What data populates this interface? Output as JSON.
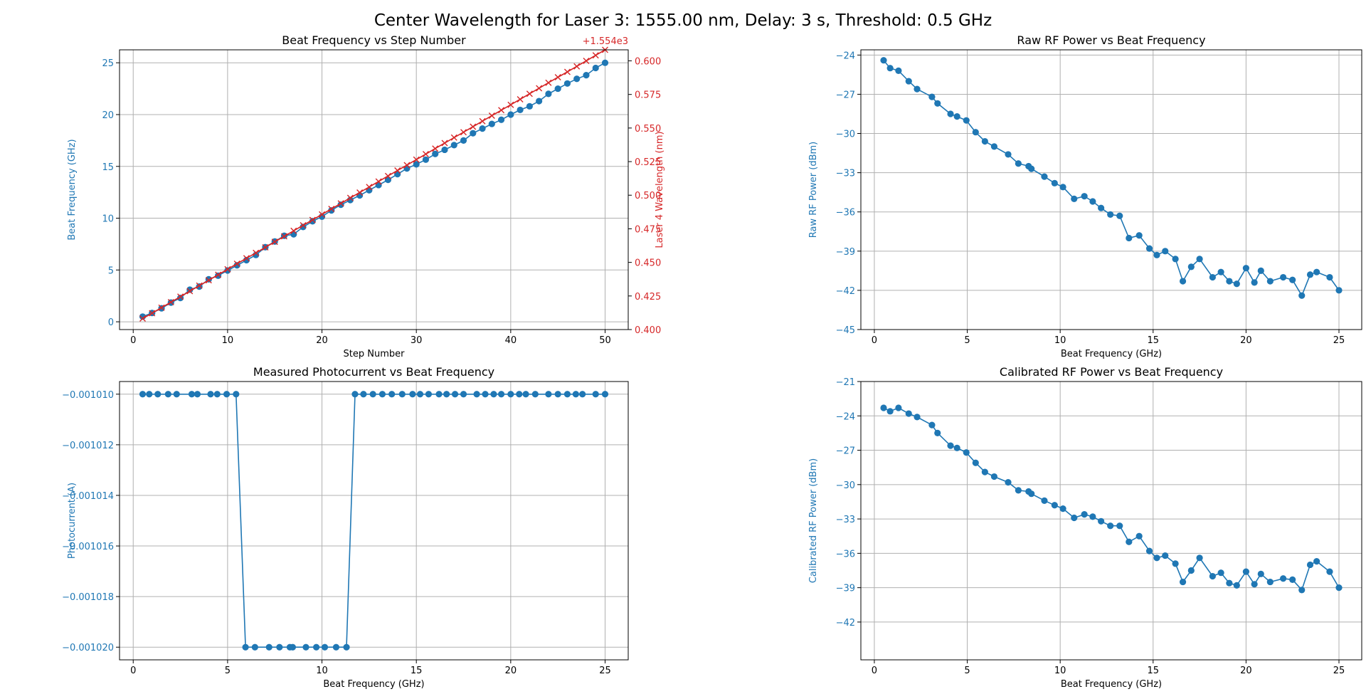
{
  "figure": {
    "title": "Center Wavelength for Laser 3: 1555.00 nm, Delay: 3 s, Threshold: 0.5 GHz",
    "colors": {
      "blue": "#1f77b4",
      "red": "#d62728",
      "grid": "#b0b0b0",
      "text": "#000000"
    }
  },
  "chart_data": [
    {
      "id": "beat-vs-step",
      "type": "line",
      "title": "Beat Frequency vs Step Number",
      "xlabel": "Step Number",
      "ylabel": "Beat Frequency (GHz)",
      "xlim": [
        -1.45,
        52.45
      ],
      "ylim": [
        -0.75,
        26.25
      ],
      "xticks": [
        0,
        10,
        20,
        30,
        40,
        50
      ],
      "yticks": [
        0,
        5,
        10,
        15,
        20,
        25
      ],
      "grid": true,
      "ylabel_color": "#1f77b4",
      "series": [
        {
          "axis": "left",
          "marker": "circle",
          "color": "#1f77b4",
          "x": [
            1,
            2,
            3,
            4,
            5,
            6,
            7,
            8,
            9,
            10,
            11,
            12,
            13,
            14,
            15,
            16,
            17,
            18,
            19,
            20,
            21,
            22,
            23,
            24,
            25,
            26,
            27,
            28,
            29,
            30,
            31,
            32,
            33,
            34,
            35,
            36,
            37,
            38,
            39,
            40,
            41,
            42,
            43,
            44,
            45,
            46,
            47,
            48,
            49,
            50
          ],
          "y": [
            0.5,
            0.85,
            1.3,
            1.85,
            2.3,
            3.1,
            3.4,
            4.1,
            4.45,
            4.95,
            5.45,
            5.95,
            6.45,
            7.2,
            7.75,
            8.3,
            8.45,
            9.15,
            9.7,
            10.15,
            10.75,
            11.3,
            11.75,
            12.2,
            12.7,
            13.2,
            13.7,
            14.25,
            14.8,
            15.2,
            15.65,
            16.2,
            16.6,
            17.05,
            17.5,
            18.2,
            18.65,
            19.1,
            19.5,
            20.0,
            20.45,
            20.8,
            21.3,
            22.0,
            22.5,
            23.0,
            23.45,
            23.8,
            24.5,
            25.0
          ]
        },
        {
          "axis": "right",
          "marker": "x",
          "color": "#d62728",
          "x": [
            1,
            2,
            3,
            4,
            5,
            6,
            7,
            8,
            9,
            10,
            11,
            12,
            13,
            14,
            15,
            16,
            17,
            18,
            19,
            20,
            21,
            22,
            23,
            24,
            25,
            26,
            27,
            28,
            29,
            30,
            31,
            32,
            33,
            34,
            35,
            36,
            37,
            38,
            39,
            40,
            41,
            42,
            43,
            44,
            45,
            46,
            47,
            48,
            49,
            50
          ],
          "y": [
            1554.4082,
            1554.4122,
            1554.4163,
            1554.4204,
            1554.4245,
            1554.4286,
            1554.4327,
            1554.4367,
            1554.4408,
            1554.4449,
            1554.449,
            1554.4531,
            1554.4571,
            1554.4612,
            1554.4653,
            1554.4694,
            1554.4735,
            1554.4776,
            1554.4816,
            1554.4857,
            1554.4898,
            1554.4939,
            1554.498,
            1554.502,
            1554.5061,
            1554.5102,
            1554.5143,
            1554.5184,
            1554.5224,
            1554.5265,
            1554.5306,
            1554.5347,
            1554.5388,
            1554.5429,
            1554.5469,
            1554.551,
            1554.5551,
            1554.5592,
            1554.5633,
            1554.5673,
            1554.5714,
            1554.5755,
            1554.5796,
            1554.5837,
            1554.5878,
            1554.5918,
            1554.5959,
            1554.6,
            1554.6041,
            1554.6082
          ]
        }
      ],
      "right_axis": {
        "label": "Laser 4 Wavelength (nm)",
        "color": "#d62728",
        "offset_text": "+1.554e3",
        "ylim": [
          1554.4,
          1554.6082
        ],
        "ticks": [
          1554.4,
          1554.425,
          1554.45,
          1554.475,
          1554.5,
          1554.525,
          1554.55,
          1554.575,
          1554.6
        ],
        "tick_labels": [
          "0.400",
          "0.425",
          "0.450",
          "0.475",
          "0.500",
          "0.525",
          "0.550",
          "0.575",
          "0.600"
        ]
      }
    },
    {
      "id": "raw-rf",
      "type": "line",
      "title": "Raw RF Power vs Beat Frequency",
      "xlabel": "Beat Frequency (GHz)",
      "ylabel": "Raw RF Power (dBm)",
      "xlim": [
        -0.725,
        26.225
      ],
      "ylim": [
        -45,
        -23.6
      ],
      "xticks": [
        0,
        5,
        10,
        15,
        20,
        25
      ],
      "yticks": [
        -45,
        -42,
        -39,
        -36,
        -33,
        -30,
        -27,
        -24
      ],
      "grid": true,
      "ylabel_color": "#1f77b4",
      "series": [
        {
          "axis": "left",
          "marker": "circle",
          "color": "#1f77b4",
          "x": [
            0.5,
            0.85,
            1.3,
            1.85,
            2.3,
            3.1,
            3.4,
            4.1,
            4.45,
            4.95,
            5.45,
            5.95,
            6.45,
            7.2,
            7.75,
            8.3,
            8.45,
            9.15,
            9.7,
            10.15,
            10.75,
            11.3,
            11.75,
            12.2,
            12.7,
            13.2,
            13.7,
            14.25,
            14.8,
            15.2,
            15.65,
            16.2,
            16.6,
            17.05,
            17.5,
            18.2,
            18.65,
            19.1,
            19.5,
            20.0,
            20.45,
            20.8,
            21.3,
            22.0,
            22.5,
            23.0,
            23.45,
            23.8,
            24.5,
            25.0
          ],
          "y": [
            -24.4,
            -25.0,
            -25.2,
            -26.0,
            -26.6,
            -27.2,
            -27.7,
            -28.5,
            -28.7,
            -29.0,
            -29.9,
            -30.6,
            -31.0,
            -31.6,
            -32.3,
            -32.5,
            -32.7,
            -33.3,
            -33.8,
            -34.1,
            -35.0,
            -34.8,
            -35.2,
            -35.7,
            -36.2,
            -36.3,
            -38.0,
            -37.8,
            -38.8,
            -39.3,
            -39.0,
            -39.6,
            -41.3,
            -40.2,
            -39.6,
            -41.0,
            -40.6,
            -41.3,
            -41.5,
            -40.3,
            -41.4,
            -40.5,
            -41.3,
            -41.0,
            -41.2,
            -42.4,
            -40.8,
            -40.6,
            -41.0,
            -42.0
          ]
        }
      ]
    },
    {
      "id": "photocurrent",
      "type": "line",
      "title": "Measured Photocurrent vs Beat Frequency",
      "xlabel": "Beat Frequency (GHz)",
      "ylabel": "Photocurrent (A)",
      "xlim": [
        -0.725,
        26.225
      ],
      "ylim": [
        -0.0010205,
        -0.0010095
      ],
      "xticks": [
        0,
        5,
        10,
        15,
        20,
        25
      ],
      "yticks": [
        -0.00102,
        -0.001018,
        -0.001016,
        -0.001014,
        -0.001012,
        -0.00101
      ],
      "ytick_labels": [
        "−0.001020",
        "−0.001018",
        "−0.001016",
        "−0.001014",
        "−0.001012",
        "−0.001010"
      ],
      "grid": true,
      "ylabel_color": "#1f77b4",
      "series": [
        {
          "axis": "left",
          "marker": "circle",
          "color": "#1f77b4",
          "x": [
            0.5,
            0.85,
            1.3,
            1.85,
            2.3,
            3.1,
            3.4,
            4.1,
            4.45,
            4.95,
            5.45,
            5.95,
            6.45,
            7.2,
            7.75,
            8.3,
            8.45,
            9.15,
            9.7,
            10.15,
            10.75,
            11.3,
            11.75,
            12.2,
            12.7,
            13.2,
            13.7,
            14.25,
            14.8,
            15.2,
            15.65,
            16.2,
            16.6,
            17.05,
            17.5,
            18.2,
            18.65,
            19.1,
            19.5,
            20.0,
            20.45,
            20.8,
            21.3,
            22.0,
            22.5,
            23.0,
            23.45,
            23.8,
            24.5,
            25.0
          ],
          "y": [
            -0.00101,
            -0.00101,
            -0.00101,
            -0.00101,
            -0.00101,
            -0.00101,
            -0.00101,
            -0.00101,
            -0.00101,
            -0.00101,
            -0.00101,
            -0.00102,
            -0.00102,
            -0.00102,
            -0.00102,
            -0.00102,
            -0.00102,
            -0.00102,
            -0.00102,
            -0.00102,
            -0.00102,
            -0.00102,
            -0.00101,
            -0.00101,
            -0.00101,
            -0.00101,
            -0.00101,
            -0.00101,
            -0.00101,
            -0.00101,
            -0.00101,
            -0.00101,
            -0.00101,
            -0.00101,
            -0.00101,
            -0.00101,
            -0.00101,
            -0.00101,
            -0.00101,
            -0.00101,
            -0.00101,
            -0.00101,
            -0.00101,
            -0.00101,
            -0.00101,
            -0.00101,
            -0.00101,
            -0.00101,
            -0.00101,
            -0.00101
          ]
        }
      ]
    },
    {
      "id": "calibrated-rf",
      "type": "line",
      "title": "Calibrated RF Power vs Beat Frequency",
      "xlabel": "Beat Frequency (GHz)",
      "ylabel": "Calibrated RF Power (dBm)",
      "xlim": [
        -0.725,
        26.225
      ],
      "ylim": [
        -45.3,
        -21
      ],
      "xticks": [
        0,
        5,
        10,
        15,
        20,
        25
      ],
      "yticks": [
        -42,
        -39,
        -36,
        -33,
        -30,
        -27,
        -24,
        -21
      ],
      "grid": true,
      "ylabel_color": "#1f77b4",
      "series": [
        {
          "axis": "left",
          "marker": "circle",
          "color": "#1f77b4",
          "x": [
            0.5,
            0.85,
            1.3,
            1.85,
            2.3,
            3.1,
            3.4,
            4.1,
            4.45,
            4.95,
            5.45,
            5.95,
            6.45,
            7.2,
            7.75,
            8.3,
            8.45,
            9.15,
            9.7,
            10.15,
            10.75,
            11.3,
            11.75,
            12.2,
            12.7,
            13.2,
            13.7,
            14.25,
            14.8,
            15.2,
            15.65,
            16.2,
            16.6,
            17.05,
            17.5,
            18.2,
            18.65,
            19.1,
            19.5,
            20.0,
            20.45,
            20.8,
            21.3,
            22.0,
            22.5,
            23.0,
            23.45,
            23.8,
            24.5,
            25.0
          ],
          "y": [
            -23.3,
            -23.6,
            -23.3,
            -23.8,
            -24.1,
            -24.8,
            -25.5,
            -26.6,
            -26.8,
            -27.2,
            -28.1,
            -28.9,
            -29.3,
            -29.8,
            -30.5,
            -30.6,
            -30.8,
            -31.4,
            -31.8,
            -32.1,
            -32.9,
            -32.6,
            -32.8,
            -33.2,
            -33.6,
            -33.6,
            -35.0,
            -34.5,
            -35.8,
            -36.4,
            -36.2,
            -36.9,
            -38.5,
            -37.5,
            -36.4,
            -38.0,
            -37.7,
            -38.6,
            -38.8,
            -37.6,
            -38.7,
            -37.8,
            -38.5,
            -38.2,
            -38.3,
            -39.2,
            -37.0,
            -36.7,
            -37.6,
            -39.0
          ]
        }
      ]
    }
  ]
}
